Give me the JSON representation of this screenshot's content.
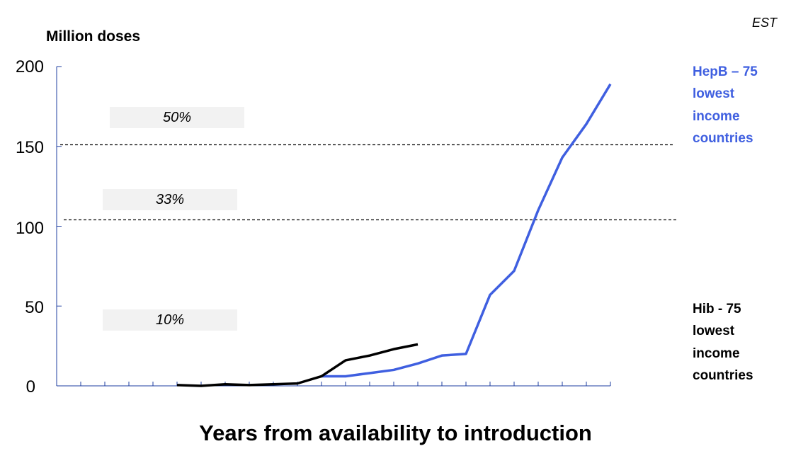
{
  "corner_label": "EST",
  "chart_data": {
    "type": "line",
    "ylabel": "Million doses",
    "xlabel": "Years from availability to introduction",
    "ylim": [
      0,
      200
    ],
    "yticks": [
      "0",
      "50",
      "100",
      "150",
      "200"
    ],
    "x_count": 24,
    "series": [
      {
        "name": "HepB – 75 lowest income countries",
        "color": "#3f5fe0",
        "x": [
          11,
          12,
          13,
          14,
          15,
          16,
          17,
          18,
          19,
          20,
          21,
          22,
          23
        ],
        "values": [
          6,
          6,
          8,
          10,
          14,
          19,
          20,
          57,
          72,
          110,
          143,
          164,
          189
        ]
      },
      {
        "name": "Hib - 75 lowest income countries",
        "color": "#000000",
        "x": [
          5,
          6,
          7,
          8,
          9,
          10,
          11,
          12,
          13,
          14,
          15
        ],
        "values": [
          0.5,
          0,
          1,
          0.5,
          1,
          1.5,
          6,
          16,
          19,
          23,
          26
        ]
      }
    ],
    "reference_lines": [
      {
        "y": 151,
        "label": "50%"
      },
      {
        "y": 104,
        "label": "33%"
      },
      {
        "label": "10%"
      }
    ]
  }
}
